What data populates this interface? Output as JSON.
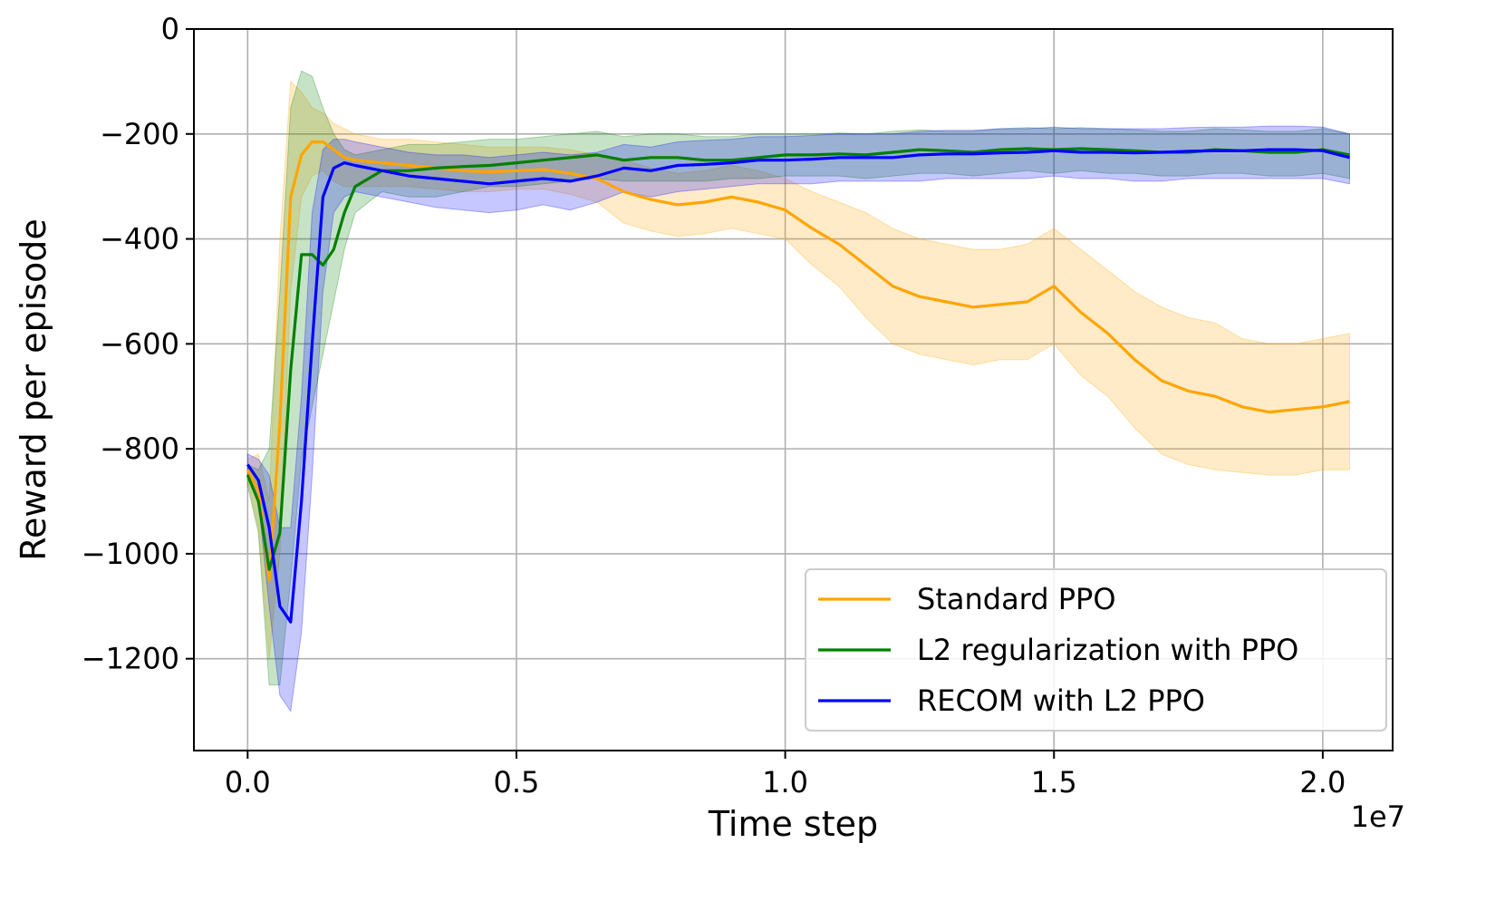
{
  "chart_data": {
    "type": "line",
    "title": "",
    "xlabel": "Time step",
    "ylabel": "Reward per episode",
    "x_scale_label": "1e7",
    "xlim": [
      -0.1,
      2.13
    ],
    "ylim": [
      -1375,
      0
    ],
    "x_ticks": [
      0.0,
      0.5,
      1.0,
      1.5,
      2.0
    ],
    "x_tick_labels": [
      "0.0",
      "0.5",
      "1.0",
      "1.5",
      "2.0"
    ],
    "y_ticks": [
      0,
      -200,
      -400,
      -600,
      -800,
      -1000,
      -1200
    ],
    "y_tick_labels": [
      "0",
      "−200",
      "−400",
      "−600",
      "−800",
      "−1000",
      "−1200"
    ],
    "grid": true,
    "legend_position": "lower-right",
    "series": [
      {
        "name": "Standard PPO",
        "color": "#ffa500",
        "x": [
          0.0,
          0.02,
          0.04,
          0.06,
          0.08,
          0.1,
          0.12,
          0.14,
          0.16,
          0.18,
          0.2,
          0.25,
          0.3,
          0.35,
          0.4,
          0.45,
          0.5,
          0.55,
          0.6,
          0.65,
          0.7,
          0.75,
          0.8,
          0.85,
          0.9,
          0.95,
          1.0,
          1.05,
          1.1,
          1.15,
          1.2,
          1.25,
          1.3,
          1.35,
          1.4,
          1.45,
          1.5,
          1.55,
          1.6,
          1.65,
          1.7,
          1.75,
          1.8,
          1.85,
          1.9,
          1.95,
          2.0,
          2.05
        ],
        "y": [
          -840,
          -880,
          -1050,
          -750,
          -320,
          -240,
          -215,
          -215,
          -230,
          -245,
          -250,
          -255,
          -260,
          -265,
          -270,
          -272,
          -270,
          -268,
          -275,
          -285,
          -310,
          -325,
          -335,
          -330,
          -320,
          -330,
          -345,
          -380,
          -410,
          -450,
          -490,
          -510,
          -520,
          -530,
          -525,
          -520,
          -490,
          -540,
          -580,
          -630,
          -670,
          -690,
          -700,
          -720,
          -730,
          -725,
          -720,
          -710
        ],
        "lower": [
          -860,
          -950,
          -1200,
          -1000,
          -500,
          -320,
          -280,
          -270,
          -290,
          -300,
          -300,
          -300,
          -300,
          -305,
          -310,
          -310,
          -305,
          -305,
          -315,
          -330,
          -370,
          -385,
          -395,
          -390,
          -380,
          -390,
          -400,
          -450,
          -490,
          -550,
          -600,
          -620,
          -630,
          -640,
          -630,
          -630,
          -600,
          -660,
          -700,
          -760,
          -810,
          -830,
          -840,
          -845,
          -850,
          -850,
          -840,
          -840
        ],
        "upper": [
          -820,
          -810,
          -900,
          -400,
          -100,
          -120,
          -150,
          -160,
          -180,
          -190,
          -200,
          -210,
          -210,
          -215,
          -220,
          -225,
          -225,
          -225,
          -230,
          -240,
          -250,
          -265,
          -275,
          -270,
          -260,
          -270,
          -285,
          -310,
          -330,
          -350,
          -380,
          -400,
          -410,
          -420,
          -420,
          -410,
          -380,
          -420,
          -460,
          -500,
          -530,
          -550,
          -560,
          -590,
          -600,
          -600,
          -590,
          -580
        ]
      },
      {
        "name": "L2 regularization with PPO",
        "color": "#008000",
        "x": [
          0.0,
          0.02,
          0.04,
          0.06,
          0.08,
          0.1,
          0.12,
          0.14,
          0.16,
          0.18,
          0.2,
          0.25,
          0.3,
          0.35,
          0.4,
          0.45,
          0.5,
          0.55,
          0.6,
          0.65,
          0.7,
          0.75,
          0.8,
          0.85,
          0.9,
          0.95,
          1.0,
          1.05,
          1.1,
          1.15,
          1.2,
          1.25,
          1.3,
          1.35,
          1.4,
          1.45,
          1.5,
          1.55,
          1.6,
          1.65,
          1.7,
          1.75,
          1.8,
          1.85,
          1.9,
          1.95,
          2.0,
          2.05
        ],
        "y": [
          -850,
          -900,
          -1030,
          -960,
          -650,
          -430,
          -430,
          -450,
          -420,
          -350,
          -300,
          -270,
          -270,
          -265,
          -262,
          -260,
          -255,
          -250,
          -245,
          -240,
          -250,
          -245,
          -245,
          -250,
          -250,
          -245,
          -240,
          -240,
          -238,
          -240,
          -235,
          -230,
          -232,
          -235,
          -230,
          -228,
          -230,
          -228,
          -230,
          -232,
          -235,
          -235,
          -230,
          -232,
          -235,
          -235,
          -230,
          -240
        ],
        "lower": [
          -870,
          -960,
          -1250,
          -1250,
          -1050,
          -820,
          -720,
          -620,
          -520,
          -420,
          -350,
          -310,
          -320,
          -320,
          -310,
          -300,
          -300,
          -295,
          -290,
          -285,
          -290,
          -290,
          -290,
          -290,
          -285,
          -285,
          -280,
          -280,
          -280,
          -285,
          -280,
          -275,
          -275,
          -280,
          -275,
          -270,
          -275,
          -270,
          -275,
          -275,
          -280,
          -280,
          -275,
          -275,
          -280,
          -280,
          -275,
          -285
        ],
        "upper": [
          -830,
          -840,
          -800,
          -500,
          -150,
          -80,
          -90,
          -150,
          -200,
          -230,
          -240,
          -230,
          -220,
          -220,
          -215,
          -210,
          -210,
          -205,
          -200,
          -195,
          -205,
          -200,
          -200,
          -205,
          -205,
          -200,
          -200,
          -200,
          -198,
          -200,
          -195,
          -192,
          -195,
          -195,
          -190,
          -188,
          -190,
          -188,
          -190,
          -192,
          -195,
          -195,
          -190,
          -192,
          -195,
          -195,
          -190,
          -200
        ]
      },
      {
        "name": "RECOM with L2 PPO",
        "color": "#0000ff",
        "x": [
          0.0,
          0.02,
          0.04,
          0.06,
          0.08,
          0.1,
          0.12,
          0.14,
          0.16,
          0.18,
          0.2,
          0.25,
          0.3,
          0.35,
          0.4,
          0.45,
          0.5,
          0.55,
          0.6,
          0.65,
          0.7,
          0.75,
          0.8,
          0.85,
          0.9,
          0.95,
          1.0,
          1.05,
          1.1,
          1.15,
          1.2,
          1.25,
          1.3,
          1.35,
          1.4,
          1.45,
          1.5,
          1.55,
          1.6,
          1.65,
          1.7,
          1.75,
          1.8,
          1.85,
          1.9,
          1.95,
          2.0,
          2.05
        ],
        "y": [
          -830,
          -860,
          -950,
          -1100,
          -1130,
          -900,
          -600,
          -320,
          -265,
          -255,
          -260,
          -270,
          -280,
          -285,
          -290,
          -295,
          -290,
          -285,
          -290,
          -280,
          -265,
          -270,
          -260,
          -258,
          -255,
          -250,
          -250,
          -248,
          -245,
          -245,
          -245,
          -240,
          -238,
          -238,
          -236,
          -235,
          -232,
          -235,
          -235,
          -236,
          -235,
          -233,
          -232,
          -232,
          -230,
          -230,
          -232,
          -245
        ],
        "lower": [
          -850,
          -900,
          -1100,
          -1270,
          -1300,
          -1150,
          -850,
          -500,
          -350,
          -320,
          -310,
          -320,
          -330,
          -340,
          -345,
          -350,
          -345,
          -335,
          -345,
          -330,
          -310,
          -320,
          -310,
          -305,
          -300,
          -295,
          -295,
          -295,
          -290,
          -290,
          -290,
          -290,
          -285,
          -285,
          -285,
          -285,
          -280,
          -285,
          -285,
          -290,
          -290,
          -285,
          -285,
          -285,
          -285,
          -285,
          -285,
          -295
        ],
        "upper": [
          -810,
          -820,
          -850,
          -950,
          -950,
          -700,
          -350,
          -230,
          -210,
          -210,
          -215,
          -225,
          -235,
          -240,
          -240,
          -245,
          -240,
          -235,
          -240,
          -235,
          -220,
          -225,
          -215,
          -212,
          -210,
          -205,
          -205,
          -203,
          -200,
          -200,
          -200,
          -195,
          -193,
          -193,
          -190,
          -190,
          -187,
          -190,
          -190,
          -190,
          -190,
          -188,
          -187,
          -187,
          -185,
          -185,
          -187,
          -200
        ]
      }
    ]
  }
}
